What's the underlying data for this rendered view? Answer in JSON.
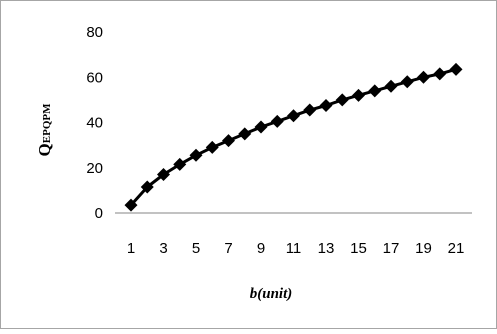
{
  "chart_data": {
    "type": "line",
    "xlabel_main": "b",
    "xlabel_unit": "(unit)",
    "ylabel_main": "Q",
    "ylabel_sub": "EPQPM",
    "x_ticks": [
      "1",
      "3",
      "5",
      "7",
      "9",
      "11",
      "13",
      "15",
      "17",
      "19",
      "21"
    ],
    "y_ticks": [
      "0",
      "20",
      "40",
      "60",
      "80"
    ],
    "ylim": [
      0,
      80
    ],
    "xlim": [
      1,
      21
    ],
    "grid": false,
    "legend": "none",
    "marker": "diamond",
    "line_color": "#000000",
    "series": [
      {
        "x": [
          1,
          2,
          3,
          4,
          5,
          6,
          7,
          8,
          9,
          10,
          11,
          12,
          13,
          14,
          15,
          16,
          17,
          18,
          19,
          20,
          21
        ],
        "values": [
          3.5,
          11.5,
          17,
          21.5,
          25.5,
          29,
          32,
          35,
          38,
          40.5,
          43,
          45.5,
          47.5,
          50,
          52,
          54,
          56,
          58,
          60,
          61.5,
          63.5
        ]
      }
    ]
  }
}
